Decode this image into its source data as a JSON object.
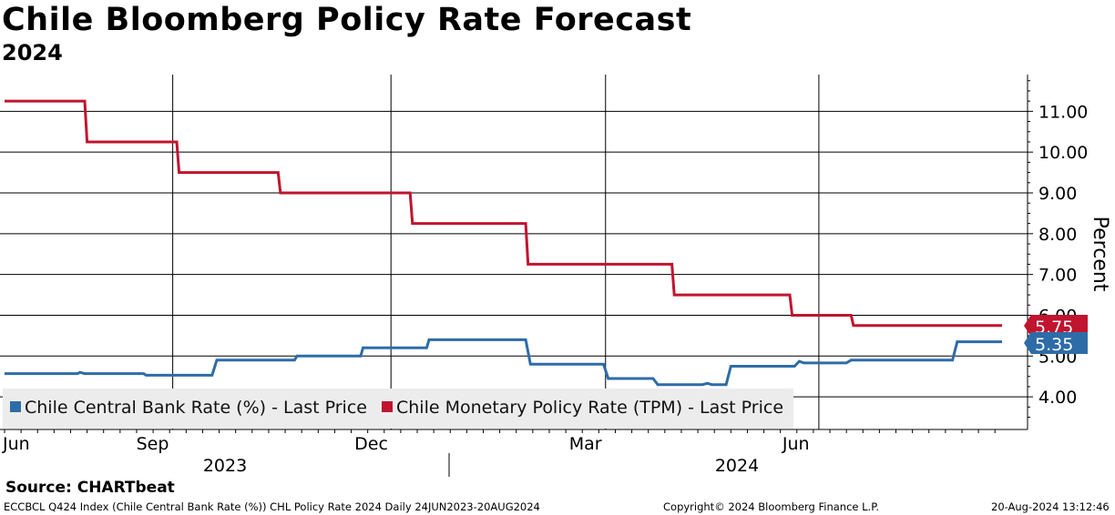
{
  "title": "Chile Bloomberg Policy Rate Forecast",
  "subtitle": "2024",
  "source": "Source: CHARTbeat",
  "footer": {
    "left": "ECCBCL Q424 Index (Chile Central Bank Rate (%)) CHL Policy Rate 2024  Daily 24JUN2023-20AUG2024",
    "center": "Copyright© 2024 Bloomberg Finance L.P.",
    "right": "20-Aug-2024 13:12:46"
  },
  "legend": {
    "items": [
      {
        "label": "Chile Central Bank Rate (%) - Last Price",
        "color": "#2e6ca8"
      },
      {
        "label": "Chile Monetary Policy Rate (TPM) - Last Price",
        "color": "#c0142f"
      }
    ]
  },
  "chart_data": {
    "type": "line",
    "ylabel": "Percent",
    "ylim": [
      3.2,
      11.9
    ],
    "yticks": [
      4,
      5,
      6,
      7,
      8,
      9,
      10,
      11
    ],
    "ytick_labels": [
      "4.00",
      "5.00",
      "6.00",
      "7.00",
      "8.00",
      "9.00",
      "10.00",
      "11.00"
    ],
    "xlim": [
      "2023-06-24",
      "2024-08-20"
    ],
    "x_month_ticks": [
      {
        "date": "2023-06-01",
        "label": "Jun"
      },
      {
        "date": "2023-09-01",
        "label": "Sep"
      },
      {
        "date": "2023-12-01",
        "label": "Dec"
      },
      {
        "date": "2024-03-01",
        "label": "Mar"
      },
      {
        "date": "2024-06-01",
        "label": "Jun"
      }
    ],
    "x_year_labels": [
      {
        "label": "2023",
        "from": "2023-06-24",
        "to": "2024-01-01"
      },
      {
        "label": "2024",
        "from": "2024-01-01",
        "to": "2024-08-20"
      }
    ],
    "grid": true,
    "legend_position": "bottom-left",
    "series": [
      {
        "name": "Chile Monetary Policy Rate (TPM) - Last Price",
        "color": "#c0142f",
        "last_label": "5.75",
        "points": [
          [
            "2023-06-24",
            11.25
          ],
          [
            "2023-07-28",
            11.25
          ],
          [
            "2023-07-29",
            10.25
          ],
          [
            "2023-09-05",
            10.25
          ],
          [
            "2023-09-06",
            9.5
          ],
          [
            "2023-10-18",
            9.5
          ],
          [
            "2023-10-19",
            9.0
          ],
          [
            "2023-12-13",
            9.0
          ],
          [
            "2023-12-14",
            8.25
          ],
          [
            "2024-01-31",
            8.25
          ],
          [
            "2024-02-01",
            7.25
          ],
          [
            "2024-04-02",
            7.25
          ],
          [
            "2024-04-03",
            6.5
          ],
          [
            "2024-05-22",
            6.5
          ],
          [
            "2024-05-23",
            6.0
          ],
          [
            "2024-06-17",
            6.0
          ],
          [
            "2024-06-18",
            5.75
          ],
          [
            "2024-08-20",
            5.75
          ]
        ]
      },
      {
        "name": "Chile Central Bank Rate (%) - Last Price",
        "color": "#2e6ca8",
        "last_label": "5.35",
        "points": [
          [
            "2023-06-24",
            4.57
          ],
          [
            "2023-07-25",
            4.57
          ],
          [
            "2023-07-26",
            4.6
          ],
          [
            "2023-07-28",
            4.57
          ],
          [
            "2023-08-22",
            4.57
          ],
          [
            "2023-08-23",
            4.53
          ],
          [
            "2023-09-20",
            4.53
          ],
          [
            "2023-09-22",
            4.9
          ],
          [
            "2023-10-25",
            4.9
          ],
          [
            "2023-10-26",
            5.0
          ],
          [
            "2023-11-22",
            5.0
          ],
          [
            "2023-11-23",
            5.2
          ],
          [
            "2023-12-20",
            5.2
          ],
          [
            "2023-12-21",
            5.4
          ],
          [
            "2024-01-31",
            5.4
          ],
          [
            "2024-02-02",
            4.8
          ],
          [
            "2024-03-04",
            4.8
          ],
          [
            "2024-03-06",
            4.45
          ],
          [
            "2024-03-25",
            4.45
          ],
          [
            "2024-03-27",
            4.3
          ],
          [
            "2024-04-15",
            4.3
          ],
          [
            "2024-04-17",
            4.33
          ],
          [
            "2024-04-19",
            4.3
          ],
          [
            "2024-04-25",
            4.3
          ],
          [
            "2024-04-27",
            4.75
          ],
          [
            "2024-05-24",
            4.75
          ],
          [
            "2024-05-26",
            4.87
          ],
          [
            "2024-05-28",
            4.83
          ],
          [
            "2024-06-15",
            4.83
          ],
          [
            "2024-06-17",
            4.9
          ],
          [
            "2024-07-30",
            4.9
          ],
          [
            "2024-08-01",
            5.35
          ],
          [
            "2024-08-20",
            5.35
          ]
        ]
      }
    ]
  }
}
